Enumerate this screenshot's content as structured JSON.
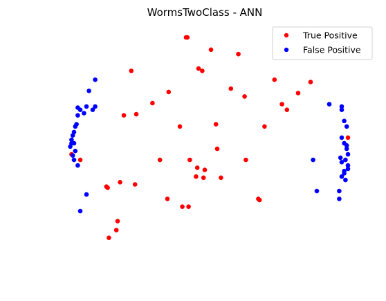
{
  "chart_data": {
    "type": "scatter",
    "title": "WormsTwoClass - ANN",
    "axes_visible": false,
    "grid": false,
    "legend_placement": "top-right",
    "xlim": [
      -1.3,
      1.3
    ],
    "ylim": [
      -1.1,
      1.1
    ],
    "series": [
      {
        "name": "True Positive",
        "color": "#ff0000",
        "points": [
          [
            -0.15,
            1.0
          ],
          [
            -0.14,
            1.0
          ],
          [
            -0.59,
            0.7
          ],
          [
            0.05,
            0.89
          ],
          [
            0.27,
            0.85
          ],
          [
            -0.05,
            0.72
          ],
          [
            -0.55,
            0.31
          ],
          [
            -0.02,
            0.7
          ],
          [
            0.56,
            0.62
          ],
          [
            -0.29,
            0.51
          ],
          [
            -0.65,
            0.3
          ],
          [
            0.21,
            0.54
          ],
          [
            0.32,
            0.47
          ],
          [
            -0.42,
            0.41
          ],
          [
            0.62,
            0.4
          ],
          [
            0.85,
            0.6
          ],
          [
            0.75,
            0.5
          ],
          [
            -0.2,
            0.2
          ],
          [
            0.1,
            0.0
          ],
          [
            0.48,
            0.2
          ],
          [
            -0.56,
            -0.32
          ],
          [
            -0.3,
            -0.45
          ],
          [
            0.0,
            -0.19
          ],
          [
            0.09,
            0.22
          ],
          [
            -1.07,
            -0.05
          ],
          [
            -1.0,
            -0.1
          ],
          [
            -0.68,
            -0.3
          ],
          [
            -0.36,
            -0.1
          ],
          [
            -0.12,
            -0.1
          ],
          [
            -0.07,
            -0.25
          ],
          [
            -0.01,
            -0.26
          ],
          [
            0.13,
            -0.26
          ],
          [
            -0.18,
            -0.52
          ],
          [
            -0.13,
            -0.52
          ],
          [
            0.43,
            -0.45
          ],
          [
            -0.78,
            -0.35
          ],
          [
            -0.79,
            -0.34
          ],
          [
            0.44,
            -0.46
          ],
          [
            -0.06,
            -0.17
          ],
          [
            0.33,
            -0.1
          ],
          [
            -0.7,
            -0.65
          ],
          [
            0.66,
            0.35
          ],
          [
            1.15,
            0.1
          ],
          [
            -0.71,
            -0.73
          ],
          [
            -0.77,
            -0.8
          ]
        ]
      },
      {
        "name": "False Positive",
        "color": "#0000ff",
        "points": [
          [
            -0.88,
            0.62
          ],
          [
            -0.93,
            0.52
          ],
          [
            -0.95,
            0.38
          ],
          [
            -0.97,
            0.32
          ],
          [
            -1.0,
            0.35
          ],
          [
            -1.02,
            0.3
          ],
          [
            -1.04,
            0.2
          ],
          [
            -1.05,
            0.15
          ],
          [
            -1.06,
            0.12
          ],
          [
            -1.07,
            0.08
          ],
          [
            -1.05,
            0.05
          ],
          [
            -1.08,
            0.02
          ],
          [
            -1.04,
            -0.02
          ],
          [
            -1.06,
            -0.06
          ],
          [
            -1.05,
            -0.1
          ],
          [
            -1.02,
            -0.15
          ],
          [
            -1.07,
            0.05
          ],
          [
            -1.03,
            0.22
          ],
          [
            -1.02,
            0.37
          ],
          [
            -0.9,
            0.35
          ],
          [
            -0.88,
            0.38
          ],
          [
            -1.0,
            -0.56
          ],
          [
            -0.95,
            -0.41
          ],
          [
            1.0,
            0.4
          ],
          [
            1.1,
            0.38
          ],
          [
            1.1,
            0.35
          ],
          [
            1.12,
            0.25
          ],
          [
            1.14,
            0.2
          ],
          [
            1.1,
            0.1
          ],
          [
            1.12,
            0.05
          ],
          [
            1.14,
            0.0
          ],
          [
            1.15,
            -0.05
          ],
          [
            1.13,
            -0.1
          ],
          [
            1.15,
            -0.15
          ],
          [
            1.12,
            -0.2
          ],
          [
            1.1,
            -0.25
          ],
          [
            1.13,
            -0.28
          ],
          [
            1.08,
            -0.38
          ],
          [
            1.08,
            -0.45
          ],
          [
            0.9,
            -0.38
          ],
          [
            0.87,
            -0.1
          ],
          [
            1.1,
            -0.12
          ],
          [
            1.15,
            -0.18
          ],
          [
            1.12,
            -0.22
          ],
          [
            1.09,
            -0.08
          ],
          [
            1.14,
            0.03
          ]
        ]
      }
    ]
  }
}
